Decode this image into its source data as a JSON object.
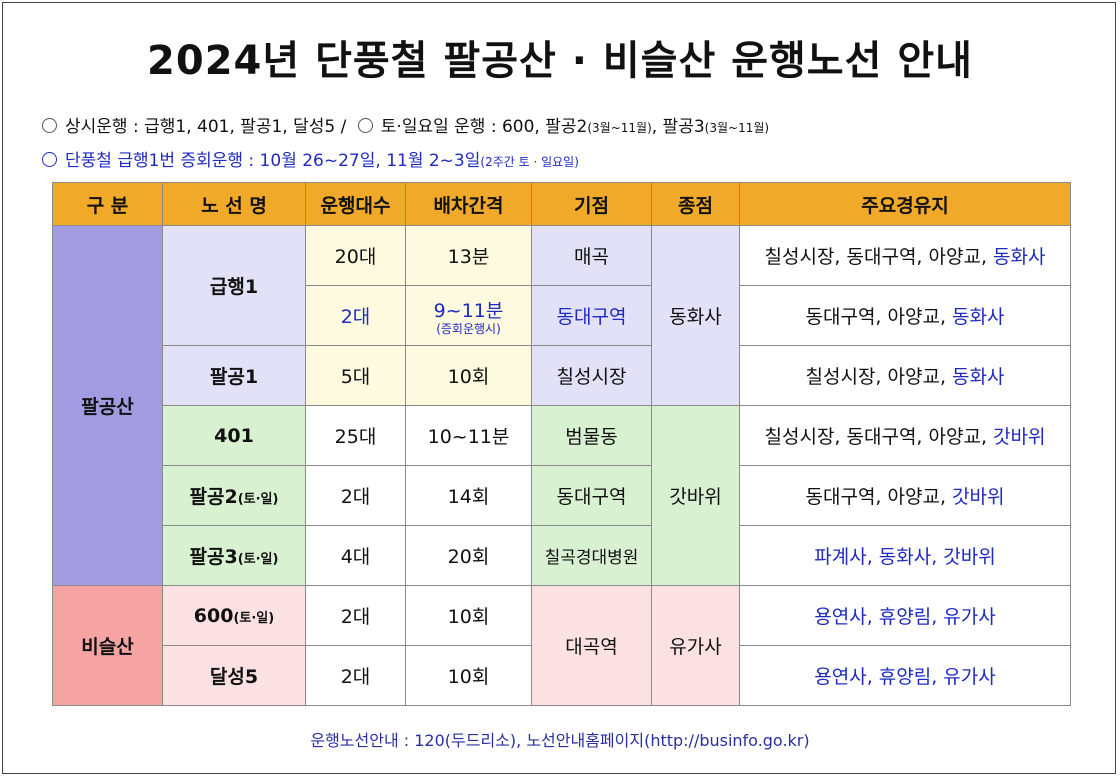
{
  "title": "2024년 단풍철 팔공산 · 비슬산 운행노선 안내",
  "info": {
    "line1_a": "상시운행 : 급행1, 401, 팔공1, 달성5 /",
    "line1_b": "토·일요일 운행 : 600, 팔공2",
    "line1_b_note": "(3월~11월)",
    "line1_c": ", 팔공3",
    "line1_c_note": "(3월~11월)",
    "line2_main": "단풍철 급행1번 증회운행 : 10월 26~27일, 11월 2~3일",
    "line2_note": "(2주간 토 · 일요일)"
  },
  "table": {
    "headers": [
      "구 분",
      "노 선 명",
      "운행대수",
      "배차간격",
      "기점",
      "종점",
      "주요경유지"
    ],
    "areas": [
      "팔공산",
      "비슬산"
    ],
    "rows": [
      {
        "route": "급행1",
        "buses": "20대",
        "interval": "13분",
        "start": "매곡",
        "end": "동화사",
        "via_black": "칠성시장, 동대구역, 아양교, ",
        "via_blue": "동화사"
      },
      {
        "buses": "2대",
        "interval": "9~11분",
        "interval_note": "(증회운행시)",
        "start": "동대구역",
        "via_black": "동대구역, 아양교, ",
        "via_blue": "동화사"
      },
      {
        "route": "팔공1",
        "buses": "5대",
        "interval": "10회",
        "start": "칠성시장",
        "via_black": "칠성시장, 아양교, ",
        "via_blue": "동화사"
      },
      {
        "route": "401",
        "buses": "25대",
        "interval": "10~11분",
        "start": "범물동",
        "end": "갓바위",
        "via_black": "칠성시장, 동대구역, 아양교, ",
        "via_blue": "갓바위"
      },
      {
        "route": "팔공2",
        "route_note": "(토·일)",
        "buses": "2대",
        "interval": "14회",
        "start": "동대구역",
        "via_black": "동대구역, 아양교, ",
        "via_blue": "갓바위"
      },
      {
        "route": "팔공3",
        "route_note": "(토·일)",
        "buses": "4대",
        "interval": "20회",
        "start": "칠곡경대병원",
        "via_black": "",
        "via_blue": "파계사, 동화사, 갓바위"
      },
      {
        "route": "600",
        "route_note": "(토·일)",
        "buses": "2대",
        "interval": "10회",
        "start": "대곡역",
        "end": "유가사",
        "via_black": "",
        "via_blue": "용연사, 휴양림, 유가사"
      },
      {
        "route": "달성5",
        "buses": "2대",
        "interval": "10회",
        "via_black": "",
        "via_blue": "용연사, 휴양림, 유가사"
      }
    ]
  },
  "footer": "운행노선안내 : 120(두드리소), 노선안내홈페이지(http://businfo.go.kr)",
  "colors": {
    "header": "#f0a929",
    "palgong_area": "#a39be0",
    "biseul_area": "#f6a3a3",
    "highlight_blue": "#1f2bbf"
  }
}
